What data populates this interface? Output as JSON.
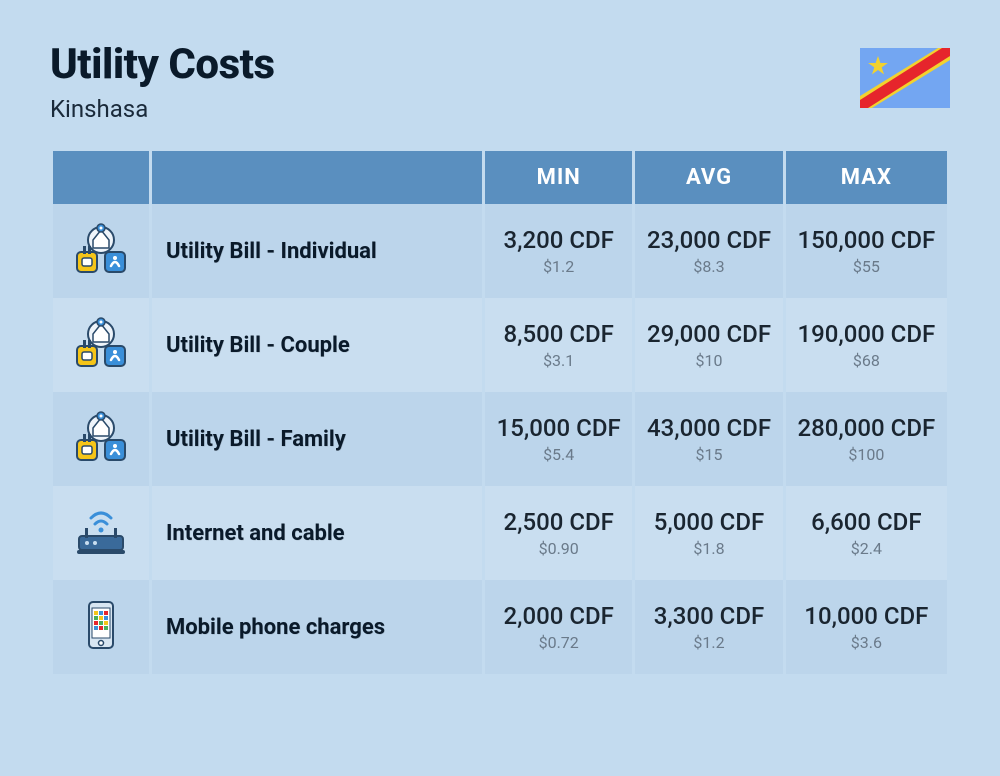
{
  "header": {
    "title": "Utility Costs",
    "subtitle": "Kinshasa"
  },
  "flag": {
    "name": "drc-flag",
    "bg": "#73a6f2",
    "stripe_red": "#e6252c",
    "stripe_yellow": "#f2d22e",
    "star": "#f2d22e"
  },
  "columns": {
    "min": "MIN",
    "avg": "AVG",
    "max": "MAX"
  },
  "rows": [
    {
      "icon": "utility-icon",
      "label": "Utility Bill - Individual",
      "min": {
        "primary": "3,200 CDF",
        "secondary": "$1.2"
      },
      "avg": {
        "primary": "23,000 CDF",
        "secondary": "$8.3"
      },
      "max": {
        "primary": "150,000 CDF",
        "secondary": "$55"
      }
    },
    {
      "icon": "utility-icon",
      "label": "Utility Bill - Couple",
      "min": {
        "primary": "8,500 CDF",
        "secondary": "$3.1"
      },
      "avg": {
        "primary": "29,000 CDF",
        "secondary": "$10"
      },
      "max": {
        "primary": "190,000 CDF",
        "secondary": "$68"
      }
    },
    {
      "icon": "utility-icon",
      "label": "Utility Bill - Family",
      "min": {
        "primary": "15,000 CDF",
        "secondary": "$5.4"
      },
      "avg": {
        "primary": "43,000 CDF",
        "secondary": "$15"
      },
      "max": {
        "primary": "280,000 CDF",
        "secondary": "$100"
      }
    },
    {
      "icon": "router-icon",
      "label": "Internet and cable",
      "min": {
        "primary": "2,500 CDF",
        "secondary": "$0.90"
      },
      "avg": {
        "primary": "5,000 CDF",
        "secondary": "$1.8"
      },
      "max": {
        "primary": "6,600 CDF",
        "secondary": "$2.4"
      }
    },
    {
      "icon": "phone-icon",
      "label": "Mobile phone charges",
      "min": {
        "primary": "2,000 CDF",
        "secondary": "$0.72"
      },
      "avg": {
        "primary": "3,300 CDF",
        "secondary": "$1.2"
      },
      "max": {
        "primary": "10,000 CDF",
        "secondary": "$3.6"
      }
    }
  ],
  "colors": {
    "page_bg": "#c3dbef",
    "header_bg": "#5a8fbf",
    "row_odd": "#bcd5eb",
    "row_even": "#c9def0",
    "text_dark": "#0a1a2a",
    "text_muted": "#6a7a8a"
  }
}
